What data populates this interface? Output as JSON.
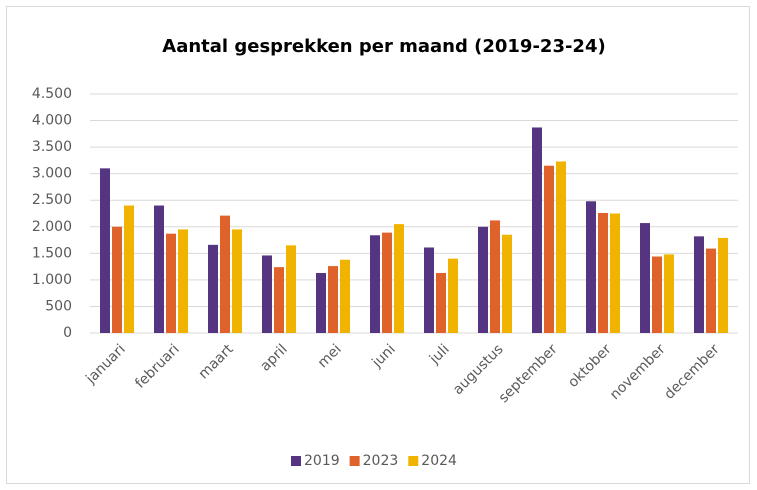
{
  "chart_data": {
    "type": "bar",
    "title": "Aantal gesprekken per maand (2019-23-24)",
    "categories": [
      "januari",
      "februari",
      "maart",
      "april",
      "mei",
      "juni",
      "juli",
      "augustus",
      "september",
      "oktober",
      "november",
      "december"
    ],
    "series": [
      {
        "name": "2019",
        "color": "#553481",
        "values": [
          3100,
          2400,
          1660,
          1460,
          1130,
          1840,
          1610,
          2000,
          3870,
          2480,
          2070,
          1820
        ]
      },
      {
        "name": "2023",
        "color": "#e0622b",
        "values": [
          2000,
          1870,
          2210,
          1240,
          1260,
          1890,
          1130,
          2120,
          3150,
          2260,
          1440,
          1590
        ]
      },
      {
        "name": "2024",
        "color": "#f0b400",
        "values": [
          2400,
          1950,
          1950,
          1650,
          1380,
          2050,
          1400,
          1850,
          3230,
          2250,
          1480,
          1790
        ]
      }
    ],
    "ylim": [
      0,
      4500
    ],
    "yticks": [
      0,
      500,
      {
        "value": 1000,
        "label": "1.000"
      },
      {
        "value": 1500,
        "label": "1.500"
      },
      {
        "value": 2000,
        "label": "2.000"
      },
      {
        "value": 2500,
        "label": "2.500"
      },
      {
        "value": 3000,
        "label": "3.000"
      },
      {
        "value": 3500,
        "label": "3.500"
      },
      {
        "value": 4000,
        "label": "4.000"
      },
      {
        "value": 4500,
        "label": "4.500"
      }
    ],
    "grid": true,
    "legend": "bottom"
  }
}
